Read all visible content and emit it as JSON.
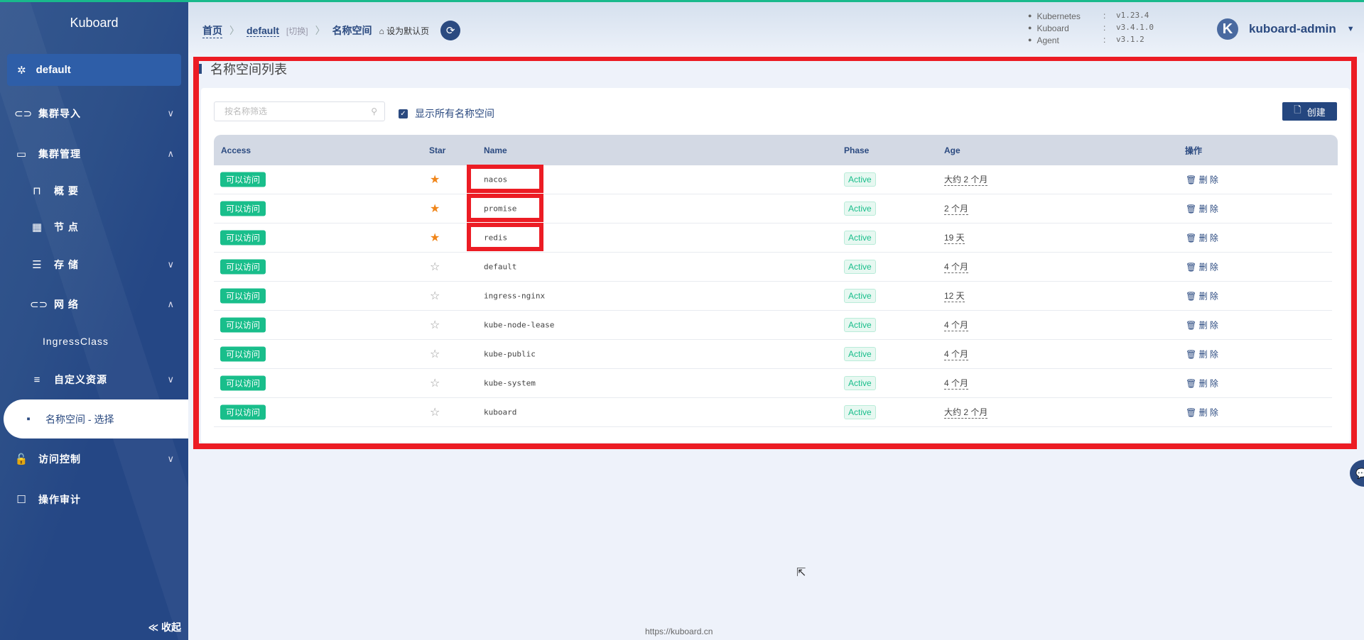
{
  "app": {
    "brand": "Kuboard",
    "namespace": "default"
  },
  "sidebar": {
    "items": [
      {
        "label": "集群导入",
        "icon": "link-icon",
        "chev": "∨"
      },
      {
        "label": "集群管理",
        "icon": "cluster-icon",
        "chev": "∧"
      },
      {
        "label": "概 要",
        "icon": "presentation-icon"
      },
      {
        "label": "节 点",
        "icon": "grid-icon"
      },
      {
        "label": "存 储",
        "icon": "database-icon",
        "chev": "∨"
      },
      {
        "label": "网 络",
        "icon": "link-icon",
        "chev": "∧"
      },
      {
        "label": "IngressClass"
      },
      {
        "label": "自定义资源",
        "icon": "sliders-icon",
        "chev": "∨"
      },
      {
        "label": "名称空间 - 选择",
        "icon": "apps-icon",
        "selected": true
      },
      {
        "label": "访问控制",
        "icon": "lock-icon",
        "chev": "∨"
      },
      {
        "label": "操作审计",
        "icon": "audit-icon"
      }
    ],
    "collapse": "≪ 收起"
  },
  "header": {
    "breadcrumb": {
      "home": "首页",
      "ns": "default",
      "switch": "[切换]",
      "current": "名称空间",
      "set_default": "设为默认页"
    },
    "versions": [
      {
        "k": "Kubernetes",
        "v": "v1.23.4"
      },
      {
        "k": "Kuboard",
        "v": "v3.4.1.0"
      },
      {
        "k": "Agent",
        "v": "v3.1.2"
      }
    ],
    "user": {
      "initial": "K",
      "name": "kuboard-admin"
    }
  },
  "main": {
    "title": "名称空间列表",
    "filter_placeholder": "按名称筛选",
    "show_all": "显示所有名称空间",
    "create": "创建",
    "columns": [
      "Access",
      "Star",
      "Name",
      "Phase",
      "Age",
      "操作"
    ],
    "rows": [
      {
        "access": "可以访问",
        "starred": true,
        "name": "nacos",
        "phase": "Active",
        "age": "大约 2 个月",
        "action": "删 除",
        "highlight": true
      },
      {
        "access": "可以访问",
        "starred": true,
        "name": "promise",
        "phase": "Active",
        "age": "2 个月",
        "action": "删 除",
        "highlight": true
      },
      {
        "access": "可以访问",
        "starred": true,
        "name": "redis",
        "phase": "Active",
        "age": "19 天",
        "action": "删 除",
        "highlight": true
      },
      {
        "access": "可以访问",
        "starred": false,
        "name": "default",
        "phase": "Active",
        "age": "4 个月",
        "action": "删 除"
      },
      {
        "access": "可以访问",
        "starred": false,
        "name": "ingress-nginx",
        "phase": "Active",
        "age": "12 天",
        "action": "删 除"
      },
      {
        "access": "可以访问",
        "starred": false,
        "name": "kube-node-lease",
        "phase": "Active",
        "age": "4 个月",
        "action": "删 除"
      },
      {
        "access": "可以访问",
        "starred": false,
        "name": "kube-public",
        "phase": "Active",
        "age": "4 个月",
        "action": "删 除"
      },
      {
        "access": "可以访问",
        "starred": false,
        "name": "kube-system",
        "phase": "Active",
        "age": "4 个月",
        "action": "删 除"
      },
      {
        "access": "可以访问",
        "starred": false,
        "name": "kuboard",
        "phase": "Active",
        "age": "大约 2 个月",
        "action": "删 除"
      }
    ]
  },
  "footer": "https://kuboard.cn",
  "colors": {
    "accent": "#2b4a80",
    "success": "#19be8b",
    "highlight": "#ec1c24",
    "star": "#f08519"
  }
}
